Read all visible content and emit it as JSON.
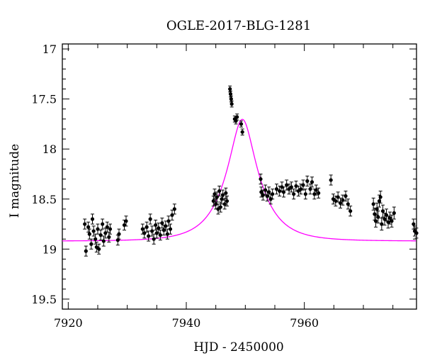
{
  "chart_data": {
    "type": "scatter",
    "title": "OGLE-2017-BLG-1281",
    "xlabel": "HJD - 2450000",
    "ylabel": "I magnitude",
    "xlim": [
      7919,
      7979
    ],
    "ylim": [
      19.6,
      16.95
    ],
    "y_inverted": true,
    "grid": false,
    "x_ticks": [
      7920,
      7940,
      7960
    ],
    "x_tick_labels": [
      "7920",
      "7940",
      "7960"
    ],
    "y_ticks": [
      17,
      17.5,
      18,
      18.5,
      19,
      19.5
    ],
    "y_tick_labels": [
      "17",
      "17.5",
      "18",
      "18.5",
      "19",
      "19.5"
    ],
    "colors": {
      "data": "#000000",
      "model": "#ff00ff"
    },
    "series": [
      {
        "kind": "points-with-errorbars",
        "points": [
          [
            7922.8,
            18.75,
            0.05
          ],
          [
            7923.0,
            19.02,
            0.05
          ],
          [
            7923.4,
            18.78,
            0.05
          ],
          [
            7923.6,
            18.85,
            0.05
          ],
          [
            7923.9,
            18.95,
            0.05
          ],
          [
            7924.1,
            18.7,
            0.05
          ],
          [
            7924.3,
            18.82,
            0.05
          ],
          [
            7924.6,
            18.9,
            0.05
          ],
          [
            7924.8,
            18.98,
            0.05
          ],
          [
            7925.0,
            18.8,
            0.05
          ],
          [
            7925.2,
            19.0,
            0.05
          ],
          [
            7925.5,
            18.86,
            0.05
          ],
          [
            7925.8,
            18.75,
            0.05
          ],
          [
            7926.0,
            18.92,
            0.05
          ],
          [
            7926.3,
            18.84,
            0.05
          ],
          [
            7926.6,
            18.78,
            0.05
          ],
          [
            7926.9,
            18.88,
            0.05
          ],
          [
            7927.1,
            18.8,
            0.05
          ],
          [
            7928.4,
            18.91,
            0.05
          ],
          [
            7928.6,
            18.85,
            0.05
          ],
          [
            7929.5,
            18.76,
            0.05
          ],
          [
            7929.8,
            18.72,
            0.05
          ],
          [
            7932.6,
            18.8,
            0.05
          ],
          [
            7932.9,
            18.84,
            0.05
          ],
          [
            7933.3,
            18.78,
            0.05
          ],
          [
            7933.6,
            18.87,
            0.05
          ],
          [
            7933.9,
            18.7,
            0.05
          ],
          [
            7934.2,
            18.82,
            0.05
          ],
          [
            7934.5,
            18.9,
            0.05
          ],
          [
            7934.8,
            18.76,
            0.05
          ],
          [
            7935.0,
            18.84,
            0.05
          ],
          [
            7935.3,
            18.79,
            0.05
          ],
          [
            7935.6,
            18.86,
            0.05
          ],
          [
            7935.9,
            18.74,
            0.05
          ],
          [
            7936.2,
            18.81,
            0.05
          ],
          [
            7936.5,
            18.77,
            0.05
          ],
          [
            7936.8,
            18.85,
            0.05
          ],
          [
            7937.0,
            18.72,
            0.05
          ],
          [
            7937.3,
            18.8,
            0.05
          ],
          [
            7937.6,
            18.66,
            0.05
          ],
          [
            7938.0,
            18.6,
            0.05
          ],
          [
            7944.6,
            18.52,
            0.05
          ],
          [
            7944.8,
            18.45,
            0.05
          ],
          [
            7945.0,
            18.55,
            0.05
          ],
          [
            7945.2,
            18.48,
            0.05
          ],
          [
            7945.4,
            18.6,
            0.05
          ],
          [
            7945.6,
            18.42,
            0.05
          ],
          [
            7945.8,
            18.58,
            0.05
          ],
          [
            7946.0,
            18.5,
            0.05
          ],
          [
            7946.2,
            18.46,
            0.05
          ],
          [
            7946.5,
            18.55,
            0.05
          ],
          [
            7946.7,
            18.44,
            0.05
          ],
          [
            7946.9,
            18.52,
            0.05
          ],
          [
            7947.4,
            17.4,
            0.03
          ],
          [
            7947.5,
            17.45,
            0.03
          ],
          [
            7947.6,
            17.5,
            0.03
          ],
          [
            7947.7,
            17.55,
            0.03
          ],
          [
            7948.2,
            17.7,
            0.03
          ],
          [
            7948.4,
            17.72,
            0.03
          ],
          [
            7948.6,
            17.68,
            0.03
          ],
          [
            7949.3,
            17.75,
            0.03
          ],
          [
            7949.5,
            17.83,
            0.03
          ],
          [
            7952.6,
            18.3,
            0.05
          ],
          [
            7952.7,
            18.43,
            0.05
          ],
          [
            7953.0,
            18.46,
            0.05
          ],
          [
            7953.4,
            18.41,
            0.05
          ],
          [
            7953.7,
            18.47,
            0.05
          ],
          [
            7954.0,
            18.43,
            0.05
          ],
          [
            7954.3,
            18.5,
            0.05
          ],
          [
            7954.6,
            18.45,
            0.05
          ],
          [
            7955.3,
            18.4,
            0.05
          ],
          [
            7955.8,
            18.42,
            0.05
          ],
          [
            7956.2,
            18.38,
            0.05
          ],
          [
            7956.5,
            18.43,
            0.05
          ],
          [
            7957.0,
            18.36,
            0.05
          ],
          [
            7957.4,
            18.4,
            0.05
          ],
          [
            7957.8,
            18.38,
            0.05
          ],
          [
            7958.2,
            18.45,
            0.05
          ],
          [
            7958.6,
            18.37,
            0.05
          ],
          [
            7959.0,
            18.42,
            0.05
          ],
          [
            7959.4,
            18.4,
            0.05
          ],
          [
            7959.8,
            18.36,
            0.05
          ],
          [
            7960.2,
            18.45,
            0.05
          ],
          [
            7960.5,
            18.32,
            0.05
          ],
          [
            7961.0,
            18.4,
            0.05
          ],
          [
            7961.3,
            18.33,
            0.05
          ],
          [
            7961.7,
            18.45,
            0.05
          ],
          [
            7962.0,
            18.41,
            0.05
          ],
          [
            7962.4,
            18.44,
            0.05
          ],
          [
            7964.5,
            18.31,
            0.05
          ],
          [
            7964.9,
            18.5,
            0.05
          ],
          [
            7965.3,
            18.52,
            0.05
          ],
          [
            7965.7,
            18.48,
            0.05
          ],
          [
            7966.1,
            18.54,
            0.05
          ],
          [
            7966.5,
            18.51,
            0.05
          ],
          [
            7967.0,
            18.47,
            0.05
          ],
          [
            7967.4,
            18.55,
            0.05
          ],
          [
            7967.8,
            18.62,
            0.05
          ],
          [
            7971.7,
            18.55,
            0.06
          ],
          [
            7971.9,
            18.65,
            0.06
          ],
          [
            7972.1,
            18.72,
            0.06
          ],
          [
            7972.3,
            18.6,
            0.06
          ],
          [
            7972.5,
            18.68,
            0.06
          ],
          [
            7972.7,
            18.52,
            0.06
          ],
          [
            7972.9,
            18.48,
            0.06
          ],
          [
            7973.1,
            18.75,
            0.06
          ],
          [
            7973.3,
            18.62,
            0.06
          ],
          [
            7973.6,
            18.7,
            0.06
          ],
          [
            7973.9,
            18.66,
            0.06
          ],
          [
            7974.2,
            18.73,
            0.06
          ],
          [
            7974.5,
            18.69,
            0.06
          ],
          [
            7974.8,
            18.72,
            0.06
          ],
          [
            7975.2,
            18.64,
            0.06
          ],
          [
            7978.5,
            18.75,
            0.05
          ],
          [
            7978.7,
            18.82,
            0.05
          ],
          [
            7979.0,
            18.84,
            0.05
          ]
        ]
      },
      {
        "kind": "model-curve",
        "model": {
          "type": "paczynski",
          "t0": 7949.5,
          "u0": 0.34,
          "tE": 5.5,
          "baseline_mag": 18.92
        }
      }
    ]
  }
}
